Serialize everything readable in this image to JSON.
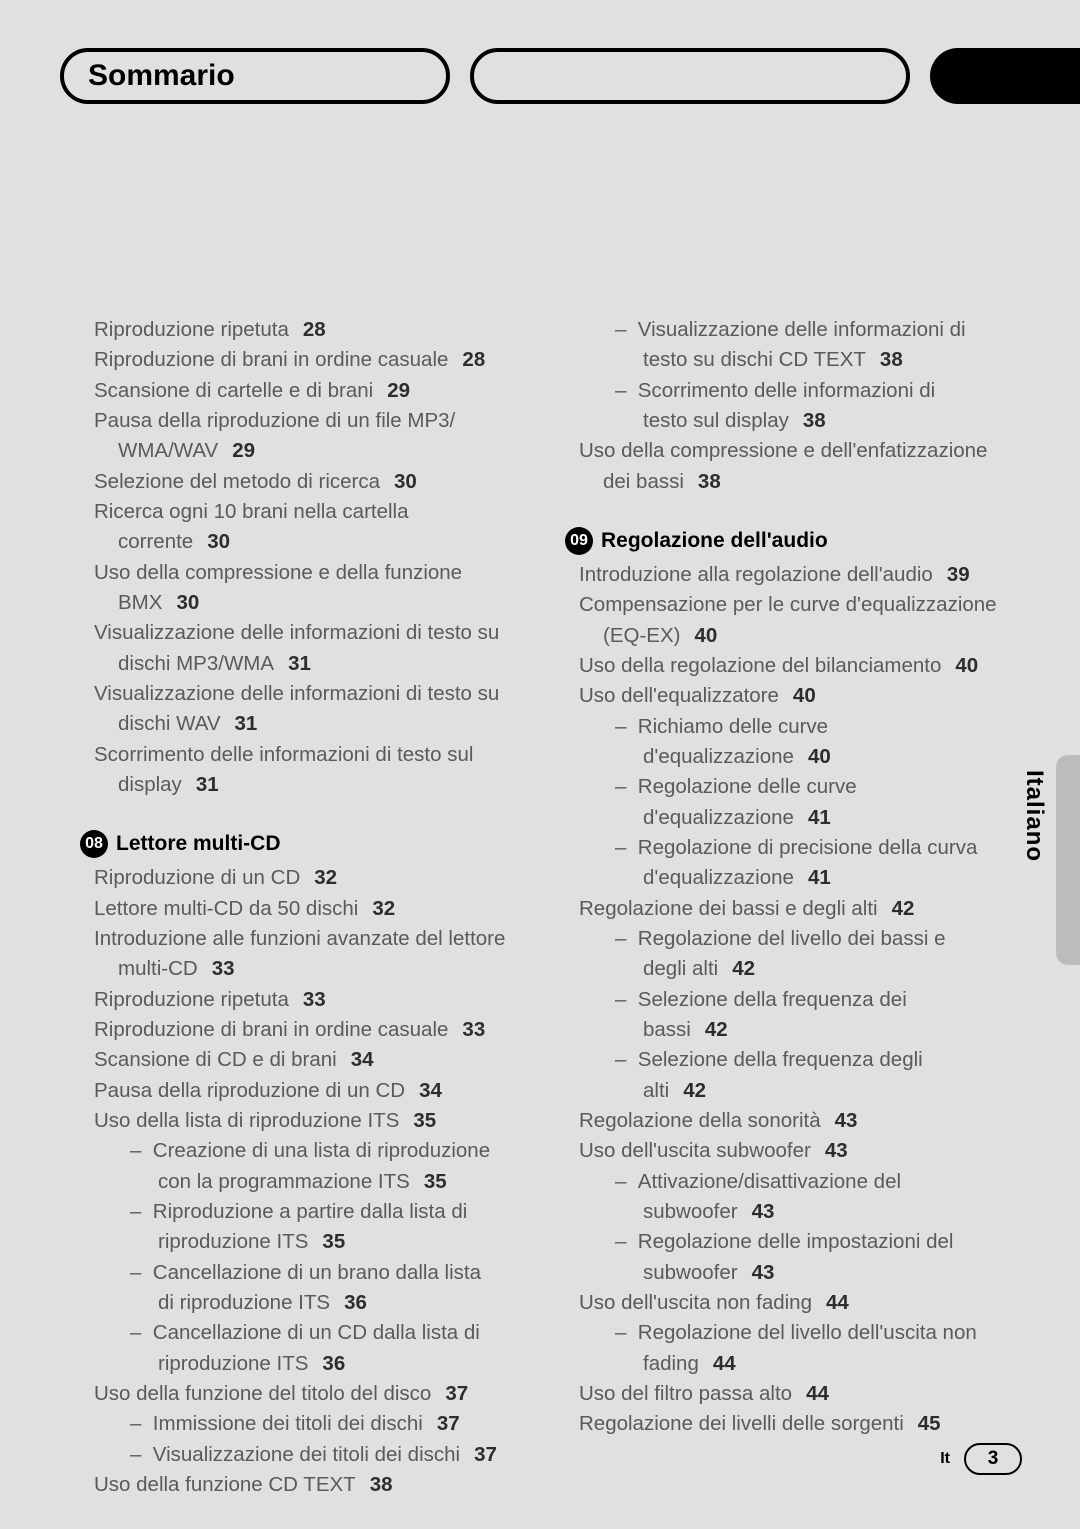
{
  "header": {
    "title": "Sommario"
  },
  "sideTab": {
    "label": "Italiano"
  },
  "footer": {
    "lang": "It",
    "page": "3"
  },
  "colors": {
    "background": "#e0e0e0",
    "text": "#5a5a5a",
    "bold_text": "#000000",
    "side_tab": "#bcbcbc"
  },
  "leftColumn": {
    "items": [
      {
        "text": "Riproduzione ripetuta",
        "page": "28"
      },
      {
        "text": "Riproduzione di brani in ordine casuale",
        "page": "28"
      },
      {
        "text": "Scansione di cartelle e di brani",
        "page": "29"
      },
      {
        "text": "Pausa della riproduzione di un file MP3/",
        "cont": "WMA/WAV",
        "page": "29"
      },
      {
        "text": "Selezione del metodo di ricerca",
        "page": "30"
      },
      {
        "text": "Ricerca ogni 10 brani nella cartella",
        "cont": "corrente",
        "page": "30"
      },
      {
        "text": "Uso della compressione e della funzione",
        "cont": "BMX",
        "page": "30"
      },
      {
        "text": "Visualizzazione delle informazioni di testo su",
        "cont": "dischi MP3/WMA",
        "page": "31"
      },
      {
        "text": "Visualizzazione delle informazioni di testo su",
        "cont": "dischi WAV",
        "page": "31"
      },
      {
        "text": "Scorrimento delle informazioni di testo sul",
        "cont": "display",
        "page": "31"
      }
    ],
    "section": {
      "num": "08",
      "title": "Lettore multi-CD"
    },
    "items2": [
      {
        "text": "Riproduzione di un CD",
        "page": "32"
      },
      {
        "text": "Lettore multi-CD da 50 dischi",
        "page": "32"
      },
      {
        "text": "Introduzione alle funzioni avanzate del lettore",
        "cont": "multi-CD",
        "page": "33"
      },
      {
        "text": "Riproduzione ripetuta",
        "page": "33"
      },
      {
        "text": "Riproduzione di brani in ordine casuale",
        "page": "33"
      },
      {
        "text": "Scansione di CD e di brani",
        "page": "34"
      },
      {
        "text": "Pausa della riproduzione di un CD",
        "page": "34"
      },
      {
        "text": "Uso della lista di riproduzione ITS",
        "page": "35"
      }
    ],
    "subs2a": [
      {
        "text": "Creazione di una lista di riproduzione",
        "cont": "con la programmazione ITS",
        "page": "35"
      },
      {
        "text": "Riproduzione a partire dalla lista di",
        "cont": "riproduzione ITS",
        "page": "35"
      },
      {
        "text": "Cancellazione di un brano dalla lista",
        "cont": "di riproduzione ITS",
        "page": "36"
      },
      {
        "text": "Cancellazione di un CD dalla lista di",
        "cont": "riproduzione ITS",
        "page": "36"
      }
    ],
    "items3": [
      {
        "text": "Uso della funzione del titolo del disco",
        "page": "37"
      }
    ],
    "subs3": [
      {
        "text": "Immissione dei titoli dei dischi",
        "page": "37"
      },
      {
        "text": "Visualizzazione dei titoli dei dischi",
        "page": "37"
      }
    ],
    "items4": [
      {
        "text": "Uso della funzione CD TEXT",
        "page": "38"
      }
    ]
  },
  "rightColumn": {
    "subs1": [
      {
        "text": "Visualizzazione delle informazioni di",
        "cont": "testo su dischi CD TEXT",
        "page": "38"
      },
      {
        "text": "Scorrimento delle informazioni di",
        "cont": "testo sul display",
        "page": "38"
      }
    ],
    "items1": [
      {
        "text": "Uso della compressione e dell'enfatizzazione",
        "cont": "dei bassi",
        "page": "38"
      }
    ],
    "section": {
      "num": "09",
      "title": "Regolazione dell'audio"
    },
    "items2": [
      {
        "text": "Introduzione alla regolazione dell'audio",
        "page": "39"
      },
      {
        "text": "Compensazione per le curve d'equalizzazione",
        "cont": "(EQ-EX)",
        "page": "40"
      },
      {
        "text": "Uso della regolazione del bilanciamento",
        "page": "40"
      },
      {
        "text": "Uso dell'equalizzatore",
        "page": "40"
      }
    ],
    "subs2": [
      {
        "text": "Richiamo delle curve",
        "cont": "d'equalizzazione",
        "page": "40"
      },
      {
        "text": "Regolazione delle curve",
        "cont": "d'equalizzazione",
        "page": "41"
      },
      {
        "text": "Regolazione di precisione della curva",
        "cont": "d'equalizzazione",
        "page": "41"
      }
    ],
    "items3": [
      {
        "text": "Regolazione dei bassi e degli alti",
        "page": "42"
      }
    ],
    "subs3": [
      {
        "text": "Regolazione del livello dei bassi e",
        "cont": "degli alti",
        "page": "42"
      },
      {
        "text": "Selezione della frequenza dei",
        "cont": "bassi",
        "page": "42"
      },
      {
        "text": "Selezione della frequenza degli",
        "cont": "alti",
        "page": "42"
      }
    ],
    "items4": [
      {
        "text": "Regolazione della sonorità",
        "page": "43"
      },
      {
        "text": "Uso dell'uscita subwoofer",
        "page": "43"
      }
    ],
    "subs4": [
      {
        "text": "Attivazione/disattivazione del",
        "cont": "subwoofer",
        "page": "43"
      },
      {
        "text": "Regolazione delle impostazioni del",
        "cont": "subwoofer",
        "page": "43"
      }
    ],
    "items5": [
      {
        "text": "Uso dell'uscita non fading",
        "page": "44"
      }
    ],
    "subs5": [
      {
        "text": "Regolazione del livello dell'uscita non",
        "cont": "fading",
        "page": "44"
      }
    ],
    "items6": [
      {
        "text": "Uso del filtro passa alto",
        "page": "44"
      },
      {
        "text": "Regolazione dei livelli delle sorgenti",
        "page": "45"
      }
    ]
  }
}
